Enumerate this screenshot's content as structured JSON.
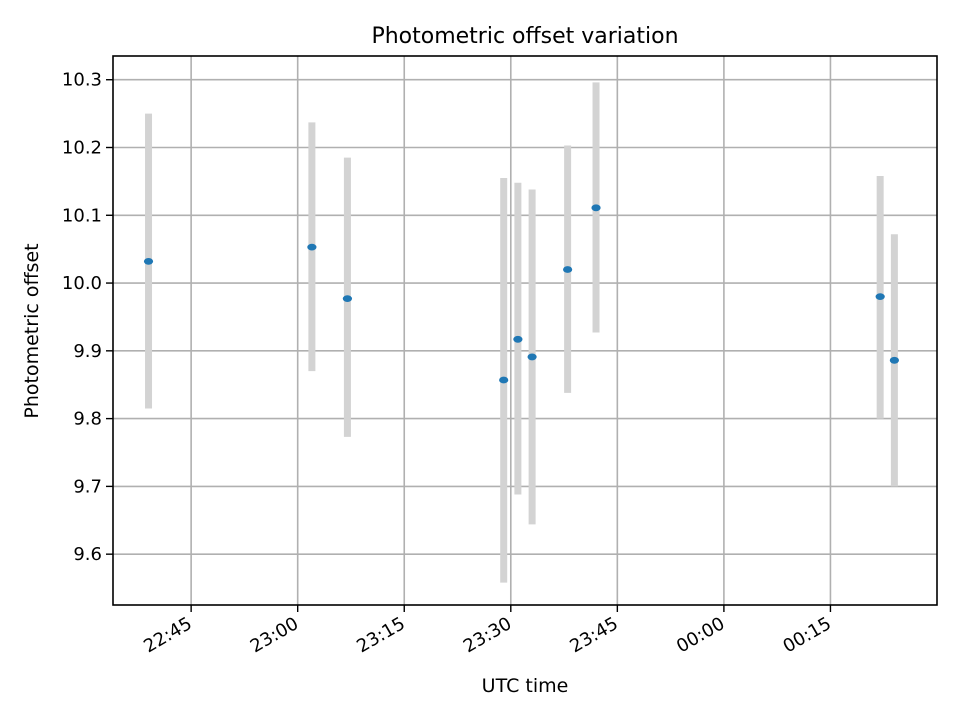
{
  "colors": {
    "point": "#1f77b4",
    "errorbar": "#d3d3d3",
    "grid": "#b0b0b0",
    "axes": "#000000",
    "background": "#ffffff"
  },
  "chart_data": {
    "type": "scatter",
    "title": "Photometric offset variation",
    "xlabel": "UTC time",
    "ylabel": "Photometric offset",
    "x_type": "time",
    "grid": true,
    "legend": "none",
    "xlim": [
      "22:34",
      "00:30"
    ],
    "ylim": [
      9.525,
      10.335
    ],
    "xticks": [
      "22:45",
      "23:00",
      "23:15",
      "23:30",
      "23:45",
      "00:00",
      "00:15"
    ],
    "yticks": [
      9.6,
      9.7,
      9.8,
      9.9,
      10.0,
      10.1,
      10.2,
      10.3
    ],
    "ytick_labels": [
      "9.6",
      "9.7",
      "9.8",
      "9.9",
      "10.0",
      "10.1",
      "10.2",
      "10.3"
    ],
    "points": [
      {
        "x": "22:39",
        "y": 10.032,
        "ylow": 9.815,
        "yhigh": 10.25
      },
      {
        "x": "23:02",
        "y": 10.053,
        "ylow": 9.87,
        "yhigh": 10.237
      },
      {
        "x": "23:07",
        "y": 9.977,
        "ylow": 9.773,
        "yhigh": 10.185
      },
      {
        "x": "23:29",
        "y": 9.857,
        "ylow": 9.558,
        "yhigh": 10.155
      },
      {
        "x": "23:31",
        "y": 9.917,
        "ylow": 9.688,
        "yhigh": 10.148
      },
      {
        "x": "23:33",
        "y": 9.891,
        "ylow": 9.644,
        "yhigh": 10.138
      },
      {
        "x": "23:38",
        "y": 10.02,
        "ylow": 9.838,
        "yhigh": 10.203
      },
      {
        "x": "23:42",
        "y": 10.111,
        "ylow": 9.927,
        "yhigh": 10.296
      },
      {
        "x": "00:22",
        "y": 9.98,
        "ylow": 9.8,
        "yhigh": 10.158
      },
      {
        "x": "00:24",
        "y": 9.886,
        "ylow": 9.7,
        "yhigh": 10.072
      }
    ]
  }
}
